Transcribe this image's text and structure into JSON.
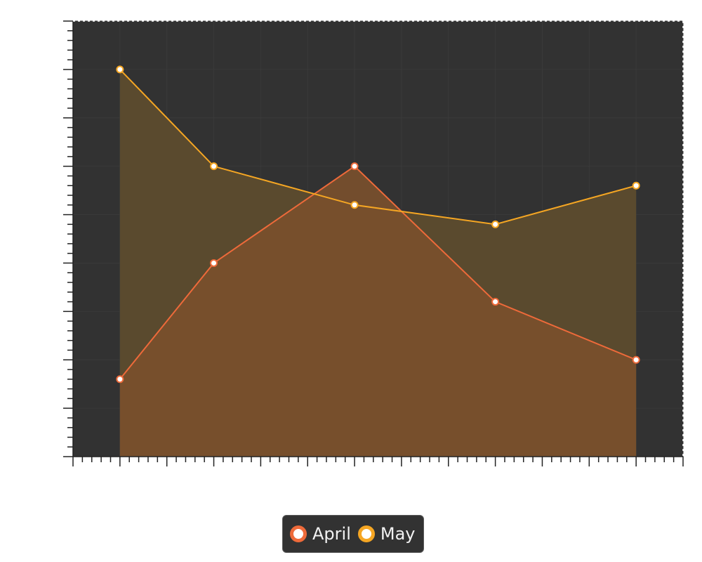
{
  "chart_data": {
    "type": "area",
    "x": [
      1,
      3,
      6,
      9,
      12
    ],
    "xlim": [
      0,
      13
    ],
    "ylim": [
      0,
      9
    ],
    "series": [
      {
        "name": "April",
        "values": [
          1.6,
          4.0,
          6.0,
          3.2,
          2.0
        ],
        "color": "#ee6a3a",
        "fill": "#7a502c"
      },
      {
        "name": "May",
        "values": [
          8.0,
          6.0,
          5.2,
          4.8,
          5.6
        ],
        "color": "#f5a623",
        "fill": "#5a4a2e"
      }
    ],
    "plot_background": "#323232",
    "grid": true,
    "legend_position": "bottom-center"
  }
}
